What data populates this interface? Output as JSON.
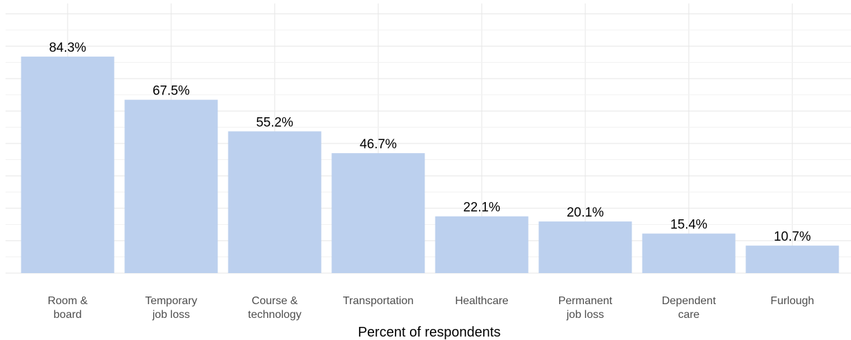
{
  "chart_data": {
    "type": "bar",
    "categories": [
      "Room &\nboard",
      "Temporary\njob loss",
      "Course &\ntechnology",
      "Transportation",
      "Healthcare",
      "Permanent\njob loss",
      "Dependent\ncare",
      "Furlough"
    ],
    "values": [
      84.3,
      67.5,
      55.2,
      46.7,
      22.1,
      20.1,
      15.4,
      10.7
    ],
    "data_labels": [
      "84.3%",
      "67.5%",
      "55.2%",
      "46.7%",
      "22.1%",
      "20.1%",
      "15.4%",
      "10.7%"
    ],
    "title": "",
    "xlabel": "Percent of respondents",
    "ylabel": "",
    "ylim": [
      0,
      105
    ],
    "grid": true,
    "legend": "none",
    "colors": {
      "bar": "#bcd0ee",
      "grid_major": "#e6e6e6",
      "grid_minor": "#f2f2f2"
    }
  }
}
